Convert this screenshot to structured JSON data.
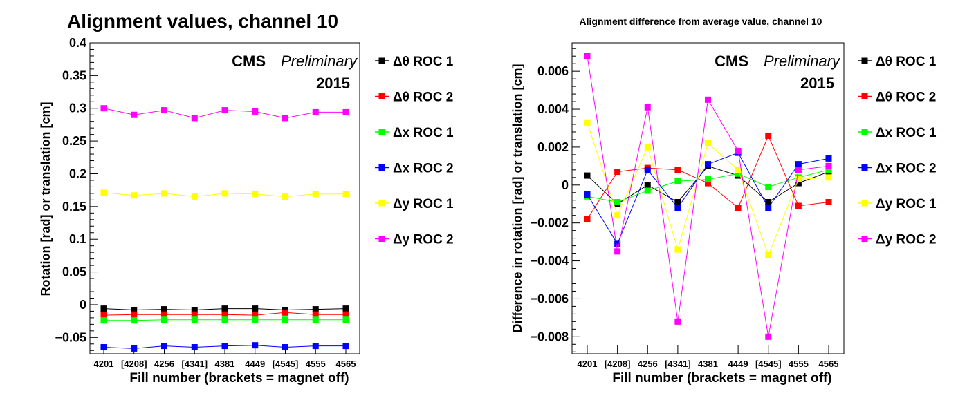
{
  "chart_data": [
    {
      "type": "line",
      "title": "Alignment values, channel 10",
      "xlabel": "Fill number (brackets = magnet off)",
      "ylabel": "Rotation [rad] or translation [cm]",
      "categories": [
        "4201",
        "[4208]",
        "4256",
        "[4341]",
        "4381",
        "4449",
        "[4545]",
        "4555",
        "4565"
      ],
      "ylim": [
        -0.075,
        0.4
      ],
      "yticks": [
        -0.05,
        0,
        0.05,
        0.1,
        0.15,
        0.2,
        0.25,
        0.3,
        0.35,
        0.4
      ],
      "ytick_labels": [
        "−0.05",
        "0",
        "0.05",
        "0.1",
        "0.15",
        "0.2",
        "0.25",
        "0.3",
        "0.35",
        "0.4"
      ],
      "annotation": {
        "cms": "CMS",
        "preliminary": "Preliminary",
        "year": "2015"
      },
      "legend_position": "right",
      "series": [
        {
          "name": "Δθ ROC 1",
          "color": "#000000",
          "values": [
            -0.006,
            -0.008,
            -0.007,
            -0.008,
            -0.006,
            -0.006,
            -0.008,
            -0.007,
            -0.006
          ]
        },
        {
          "name": "Δθ ROC 2",
          "color": "#ff0000",
          "values": [
            -0.016,
            -0.015,
            -0.015,
            -0.015,
            -0.015,
            -0.016,
            -0.012,
            -0.015,
            -0.015
          ]
        },
        {
          "name": "Δx ROC 1",
          "color": "#00ff00",
          "values": [
            -0.024,
            -0.024,
            -0.023,
            -0.023,
            -0.023,
            -0.023,
            -0.023,
            -0.023,
            -0.023
          ]
        },
        {
          "name": "Δx ROC 2",
          "color": "#0000ff",
          "values": [
            -0.065,
            -0.067,
            -0.063,
            -0.065,
            -0.063,
            -0.062,
            -0.065,
            -0.063,
            -0.063
          ]
        },
        {
          "name": "Δy ROC 1",
          "color": "#ffff00",
          "values": [
            0.171,
            0.167,
            0.17,
            0.165,
            0.17,
            0.169,
            0.165,
            0.169,
            0.169
          ]
        },
        {
          "name": "Δy ROC 2",
          "color": "#ff00ff",
          "values": [
            0.3,
            0.29,
            0.297,
            0.285,
            0.297,
            0.295,
            0.285,
            0.294,
            0.294
          ]
        }
      ]
    },
    {
      "type": "line",
      "title": "Alignment difference from average value, channel 10",
      "xlabel": "Fill number (brackets = magnet off)",
      "ylabel": "Difference in rotation [rad] or translation [cm]",
      "categories": [
        "4201",
        "[4208]",
        "4256",
        "[4341]",
        "4381",
        "4449",
        "[4545]",
        "4555",
        "4565"
      ],
      "ylim": [
        -0.0089,
        0.0075
      ],
      "yticks": [
        -0.008,
        -0.006,
        -0.004,
        -0.002,
        0,
        0.002,
        0.004,
        0.006
      ],
      "ytick_labels": [
        "−0.008",
        "−0.006",
        "−0.004",
        "−0.002",
        "0",
        "0.002",
        "0.004",
        "0.006"
      ],
      "annotation": {
        "cms": "CMS",
        "preliminary": "Preliminary",
        "year": "2015"
      },
      "legend_position": "right",
      "series": [
        {
          "name": "Δθ ROC 1",
          "color": "#000000",
          "values": [
            0.0005,
            -0.001,
            0.0,
            -0.0009,
            0.001,
            0.0005,
            -0.0009,
            0.0001,
            0.0007
          ]
        },
        {
          "name": "Δθ ROC 2",
          "color": "#ff0000",
          "values": [
            -0.0018,
            0.0007,
            0.0009,
            0.0008,
            0.0001,
            -0.0012,
            0.0026,
            -0.0011,
            -0.0009
          ]
        },
        {
          "name": "Δx ROC 1",
          "color": "#00ff00",
          "values": [
            -0.0006,
            -0.0009,
            -0.0003,
            0.0002,
            0.0003,
            0.0006,
            -0.0001,
            0.0004,
            0.0008
          ]
        },
        {
          "name": "Δx ROC 2",
          "color": "#0000ff",
          "values": [
            -0.0005,
            -0.0031,
            0.0008,
            -0.0012,
            0.0011,
            0.0017,
            -0.0012,
            0.0011,
            0.0014
          ]
        },
        {
          "name": "Δy ROC 1",
          "color": "#ffff00",
          "values": [
            0.0033,
            -0.0016,
            0.002,
            -0.0034,
            0.0022,
            0.0008,
            -0.0037,
            0.0003,
            0.0004
          ]
        },
        {
          "name": "Δy ROC 2",
          "color": "#ff00ff",
          "values": [
            0.0068,
            -0.0035,
            0.0041,
            -0.0072,
            0.0045,
            0.0018,
            -0.008,
            0.0008,
            0.001
          ]
        }
      ]
    }
  ]
}
